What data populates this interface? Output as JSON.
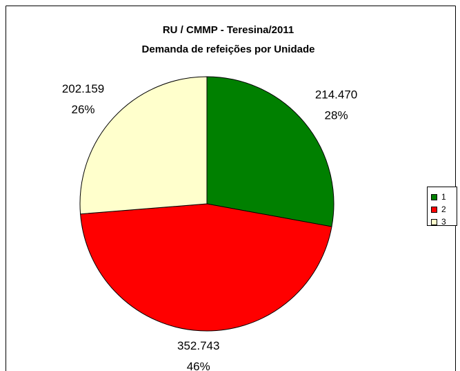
{
  "chart_data": {
    "type": "pie",
    "title": "RU / CMMP - Teresina/2011",
    "subtitle": "Demanda de refeições por Unidade",
    "categories": [
      "1",
      "2",
      "3"
    ],
    "values": [
      214470,
      352743,
      202159
    ],
    "value_labels": [
      "214.470",
      "352.743",
      "202.159"
    ],
    "percent_labels": [
      "28%",
      "46%",
      "26%"
    ],
    "colors": [
      "#008000",
      "#ff0000",
      "#ffffcc"
    ],
    "legend": "right"
  }
}
